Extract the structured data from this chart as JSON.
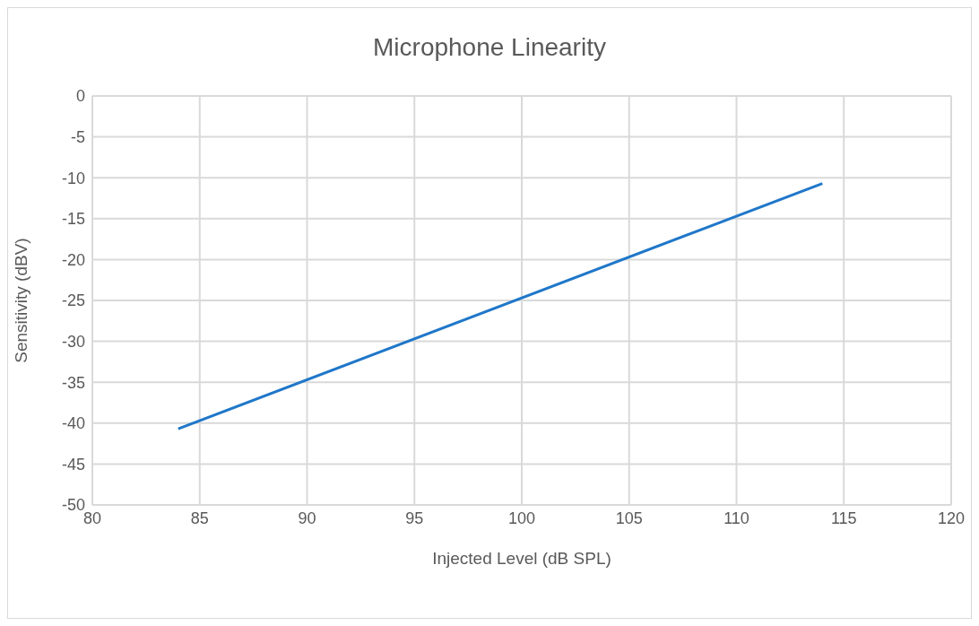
{
  "chart_data": {
    "type": "line",
    "title": "Microphone Linearity",
    "xlabel": "Injected Level (dB SPL)",
    "ylabel": "Sensitivity (dBV)",
    "x": [
      84,
      114
    ],
    "series": [
      {
        "color": "#1f77c9",
        "values": [
          -40.7,
          -10.7
        ]
      }
    ],
    "xlim": [
      80,
      120
    ],
    "xticks": [
      80,
      85,
      90,
      95,
      100,
      105,
      110,
      115,
      120
    ],
    "ylim": [
      -50,
      0
    ],
    "yticks": [
      -50,
      -45,
      -40,
      -35,
      -30,
      -25,
      -20,
      -15,
      -10,
      -5,
      0
    ],
    "grid": true,
    "marker": "none",
    "line_style": "solid"
  }
}
